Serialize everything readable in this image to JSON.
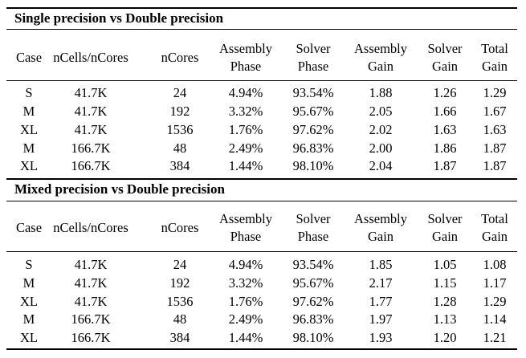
{
  "columns": [
    {
      "line1": "Case",
      "line2": ""
    },
    {
      "line1": "nCells/nCores",
      "line2": ""
    },
    {
      "line1": "nCores",
      "line2": ""
    },
    {
      "line1": "Assembly",
      "line2": "Phase"
    },
    {
      "line1": "Solver",
      "line2": "Phase"
    },
    {
      "line1": "Assembly",
      "line2": "Gain"
    },
    {
      "line1": "Solver",
      "line2": "Gain"
    },
    {
      "line1": "Total",
      "line2": "Gain"
    }
  ],
  "sections": [
    {
      "title": "Single precision vs Double precision",
      "rows": [
        [
          "S",
          "41.7K",
          "24",
          "4.94%",
          "93.54%",
          "1.88",
          "1.26",
          "1.29"
        ],
        [
          "M",
          "41.7K",
          "192",
          "3.32%",
          "95.67%",
          "2.05",
          "1.66",
          "1.67"
        ],
        [
          "XL",
          "41.7K",
          "1536",
          "1.76%",
          "97.62%",
          "2.02",
          "1.63",
          "1.63"
        ],
        [
          "M",
          "166.7K",
          "48",
          "2.49%",
          "96.83%",
          "2.00",
          "1.86",
          "1.87"
        ],
        [
          "XL",
          "166.7K",
          "384",
          "1.44%",
          "98.10%",
          "2.04",
          "1.87",
          "1.87"
        ]
      ]
    },
    {
      "title": "Mixed precision vs Double precision",
      "rows": [
        [
          "S",
          "41.7K",
          "24",
          "4.94%",
          "93.54%",
          "1.85",
          "1.05",
          "1.08"
        ],
        [
          "M",
          "41.7K",
          "192",
          "3.32%",
          "95.67%",
          "2.17",
          "1.15",
          "1.17"
        ],
        [
          "XL",
          "41.7K",
          "1536",
          "1.76%",
          "97.62%",
          "1.77",
          "1.28",
          "1.29"
        ],
        [
          "M",
          "166.7K",
          "48",
          "2.49%",
          "96.83%",
          "1.97",
          "1.13",
          "1.14"
        ],
        [
          "XL",
          "166.7K",
          "384",
          "1.44%",
          "98.10%",
          "1.93",
          "1.20",
          "1.21"
        ]
      ]
    }
  ]
}
